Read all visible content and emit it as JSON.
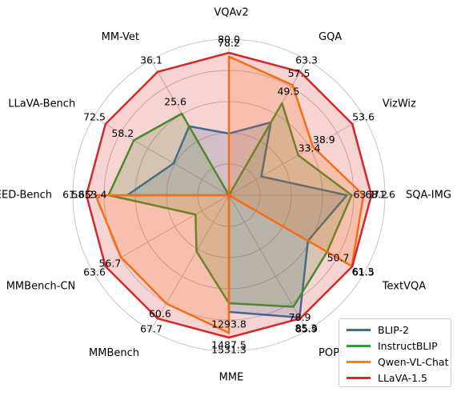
{
  "chart_data": {
    "type": "radar",
    "axes": [
      "VQAv2",
      "GQA",
      "VizWiz",
      "SQA-IMG",
      "TextVQA",
      "POPE",
      "MME",
      "MMBench",
      "MMBench-CN",
      "SEED-Bench",
      "LLaVA-Bench",
      "MM-Vet"
    ],
    "grid": true,
    "legend_position": "lower-right",
    "series": [
      {
        "name": "BLIP-2",
        "color": "#1f77b4",
        "values": [
          41.0,
          41.0,
          19.6,
          61.0,
          42.5,
          85.3,
          1293.8,
          null,
          null,
          46.4,
          38.1,
          22.4
        ],
        "labels": [
          "",
          "",
          "",
          "",
          "",
          "85.3",
          "1293.8",
          "",
          "",
          "",
          "",
          ""
        ]
      },
      {
        "name": "InstructBLIP",
        "color": "#2ca02c",
        "values": [
          null,
          49.5,
          33.4,
          63.1,
          50.7,
          78.9,
          1212.8,
          36.0,
          23.7,
          53.4,
          58.2,
          25.6
        ],
        "labels": [
          "",
          "49.5",
          "33.4",
          "63.1",
          "50.7",
          "78.9",
          "",
          "",
          "",
          "53.4",
          "58.2",
          "25.6"
        ]
      },
      {
        "name": "Qwen-VL-Chat",
        "color": "#ff7f0e",
        "values": [
          78.2,
          57.5,
          38.9,
          68.2,
          61.3,
          null,
          1487.5,
          60.6,
          56.7,
          58.2,
          null,
          null
        ],
        "labels": [
          "78.2",
          "57.5",
          "38.9",
          "68.2",
          "61.3",
          "",
          "1487.5",
          "60.6",
          "56.7",
          "58.2",
          "",
          ""
        ]
      },
      {
        "name": "LLaVA-1.5",
        "color": "#d62728",
        "values": [
          80.0,
          63.3,
          53.6,
          71.6,
          61.5,
          85.9,
          1531.3,
          67.7,
          63.6,
          61.6,
          72.5,
          36.1
        ],
        "labels": [
          "80.0",
          "63.3",
          "53.6",
          "71.6",
          "61.5",
          "85.9",
          "1531.3",
          "67.7",
          "63.6",
          "61.6",
          "72.5",
          "36.1"
        ]
      }
    ]
  }
}
